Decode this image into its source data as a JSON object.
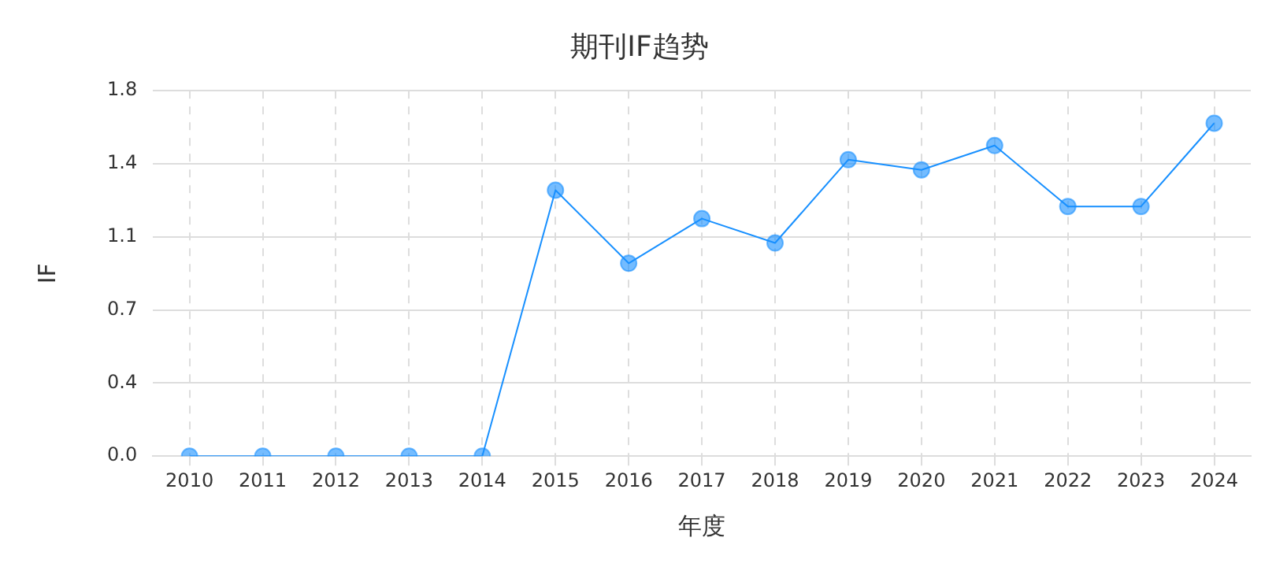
{
  "chart_data": {
    "type": "line",
    "title": "期刊IF趋势",
    "xlabel": "年度",
    "ylabel": "IF",
    "categories": [
      "2010",
      "2011",
      "2012",
      "2013",
      "2014",
      "2015",
      "2016",
      "2017",
      "2018",
      "2019",
      "2020",
      "2021",
      "2022",
      "2023",
      "2024"
    ],
    "series": [
      {
        "color": "#1890ff",
        "values": [
          0,
          0,
          0,
          0,
          0,
          1.31,
          0.95,
          1.17,
          1.05,
          1.46,
          1.41,
          1.53,
          1.23,
          1.23,
          1.64
        ]
      }
    ],
    "ylim": [
      0,
      1.8
    ],
    "yticks": [
      {
        "value": 0,
        "label": "0.0"
      },
      {
        "value": 0.36,
        "label": "0.4"
      },
      {
        "value": 0.72,
        "label": "0.7"
      },
      {
        "value": 1.08,
        "label": "1.1"
      },
      {
        "value": 1.44,
        "label": "1.4"
      },
      {
        "value": 1.8,
        "label": "1.8"
      }
    ],
    "grid": true,
    "marker": "circle",
    "line_style": "solid",
    "legend": false
  }
}
